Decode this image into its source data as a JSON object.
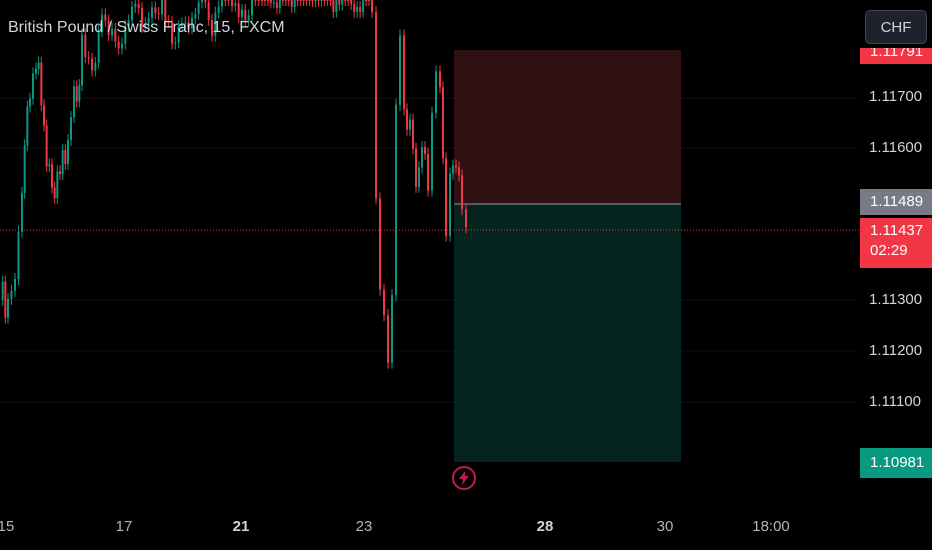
{
  "header": {
    "symbol_title": "British Pound / Swiss Franc, 15, FXCM"
  },
  "toolbar": {
    "currency": "CHF"
  },
  "price_axis": {
    "ticks": [
      "1.11700",
      "1.11600",
      "1.11300",
      "1.11200",
      "1.11100"
    ],
    "stop_label": "1.11791",
    "entry_label": "1.11489",
    "current_price": "1.11437",
    "countdown": "02:29",
    "target_label": "1.10981"
  },
  "time_axis": {
    "ticks": [
      {
        "label": "15",
        "bold": false
      },
      {
        "label": "17",
        "bold": false
      },
      {
        "label": "21",
        "bold": true
      },
      {
        "label": "23",
        "bold": false
      },
      {
        "label": "28",
        "bold": true
      },
      {
        "label": "30",
        "bold": false
      },
      {
        "label": "18:00",
        "bold": false
      }
    ]
  },
  "position_tool": {
    "type": "short position",
    "entry": 1.11489,
    "stop": 1.11791,
    "target": 1.10981,
    "stop_fill": "#2f1013",
    "target_fill": "#05241f"
  },
  "colors": {
    "background": "#000000",
    "up_candle": "#089981",
    "down_candle": "#f23645",
    "current_price_line": "#f23645"
  },
  "icons": {
    "alert": "lightning-bolt-icon"
  }
}
